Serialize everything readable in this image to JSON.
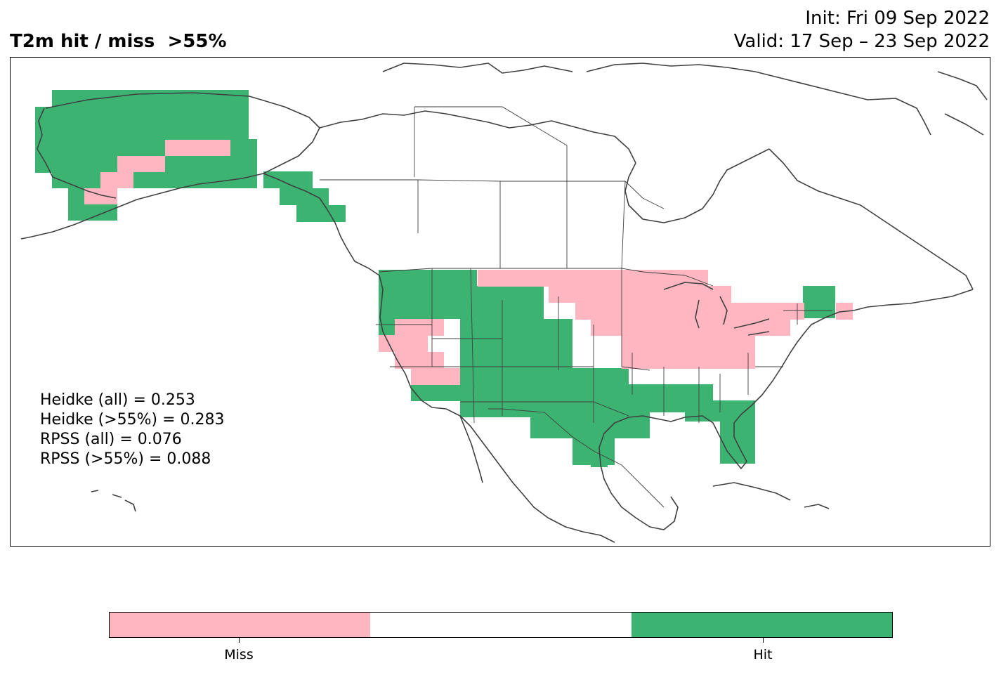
{
  "title": "T2m hit / miss  >55%",
  "init_line": "Init: Fri 09 Sep 2022",
  "valid_line": "Valid: 17 Sep – 23 Sep 2022",
  "stats": [
    "Heidke (all) = 0.253",
    "Heidke (>55%) = 0.283",
    "RPSS (all) = 0.076",
    "RPSS (>55%) = 0.088"
  ],
  "colorbar": {
    "segments": [
      {
        "color": "#ffb6c1"
      },
      {
        "color": "#ffffff"
      },
      {
        "color": "#3cb371"
      }
    ],
    "labels": [
      "Miss",
      "Hit"
    ]
  },
  "colors": {
    "miss": "#ffb6c1",
    "hit": "#3cb371",
    "coast": "#404040"
  }
}
